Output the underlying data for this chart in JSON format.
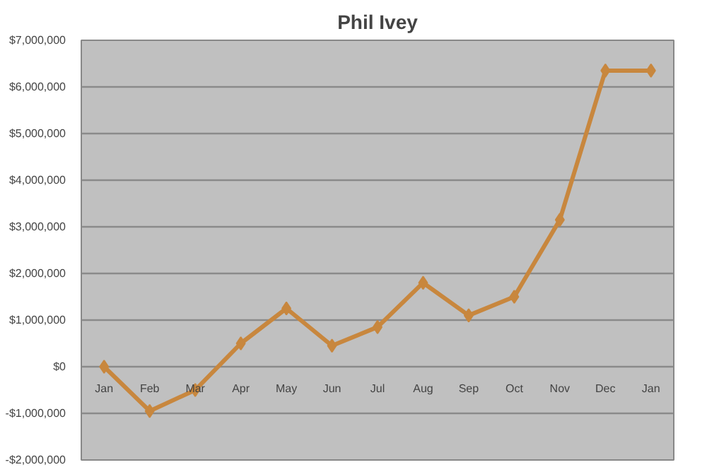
{
  "chart_data": {
    "type": "line",
    "title": "Phil Ivey",
    "categories": [
      "Jan",
      "Feb",
      "Mar",
      "Apr",
      "May",
      "Jun",
      "Jul",
      "Aug",
      "Sep",
      "Oct",
      "Nov",
      "Dec",
      "Jan"
    ],
    "series": [
      {
        "color": "#c8873e",
        "values": [
          0,
          -950000,
          -500000,
          500000,
          1250000,
          450000,
          850000,
          1800000,
          1100000,
          1500000,
          3150000,
          6350000,
          6350000
        ]
      }
    ],
    "ylim": [
      -2000000,
      7000000
    ],
    "yticks": [
      {
        "value": -2000000,
        "label": "-$2,000,000"
      },
      {
        "value": -1000000,
        "label": "-$1,000,000"
      },
      {
        "value": 0,
        "label": "$0"
      },
      {
        "value": 1000000,
        "label": "$1,000,000"
      },
      {
        "value": 2000000,
        "label": "$2,000,000"
      },
      {
        "value": 3000000,
        "label": "$3,000,000"
      },
      {
        "value": 4000000,
        "label": "$4,000,000"
      },
      {
        "value": 5000000,
        "label": "$5,000,000"
      },
      {
        "value": 6000000,
        "label": "$6,000,000"
      },
      {
        "value": 7000000,
        "label": "$7,000,000"
      }
    ],
    "grid": "y",
    "marker": "diamond",
    "line_style": "solid"
  }
}
